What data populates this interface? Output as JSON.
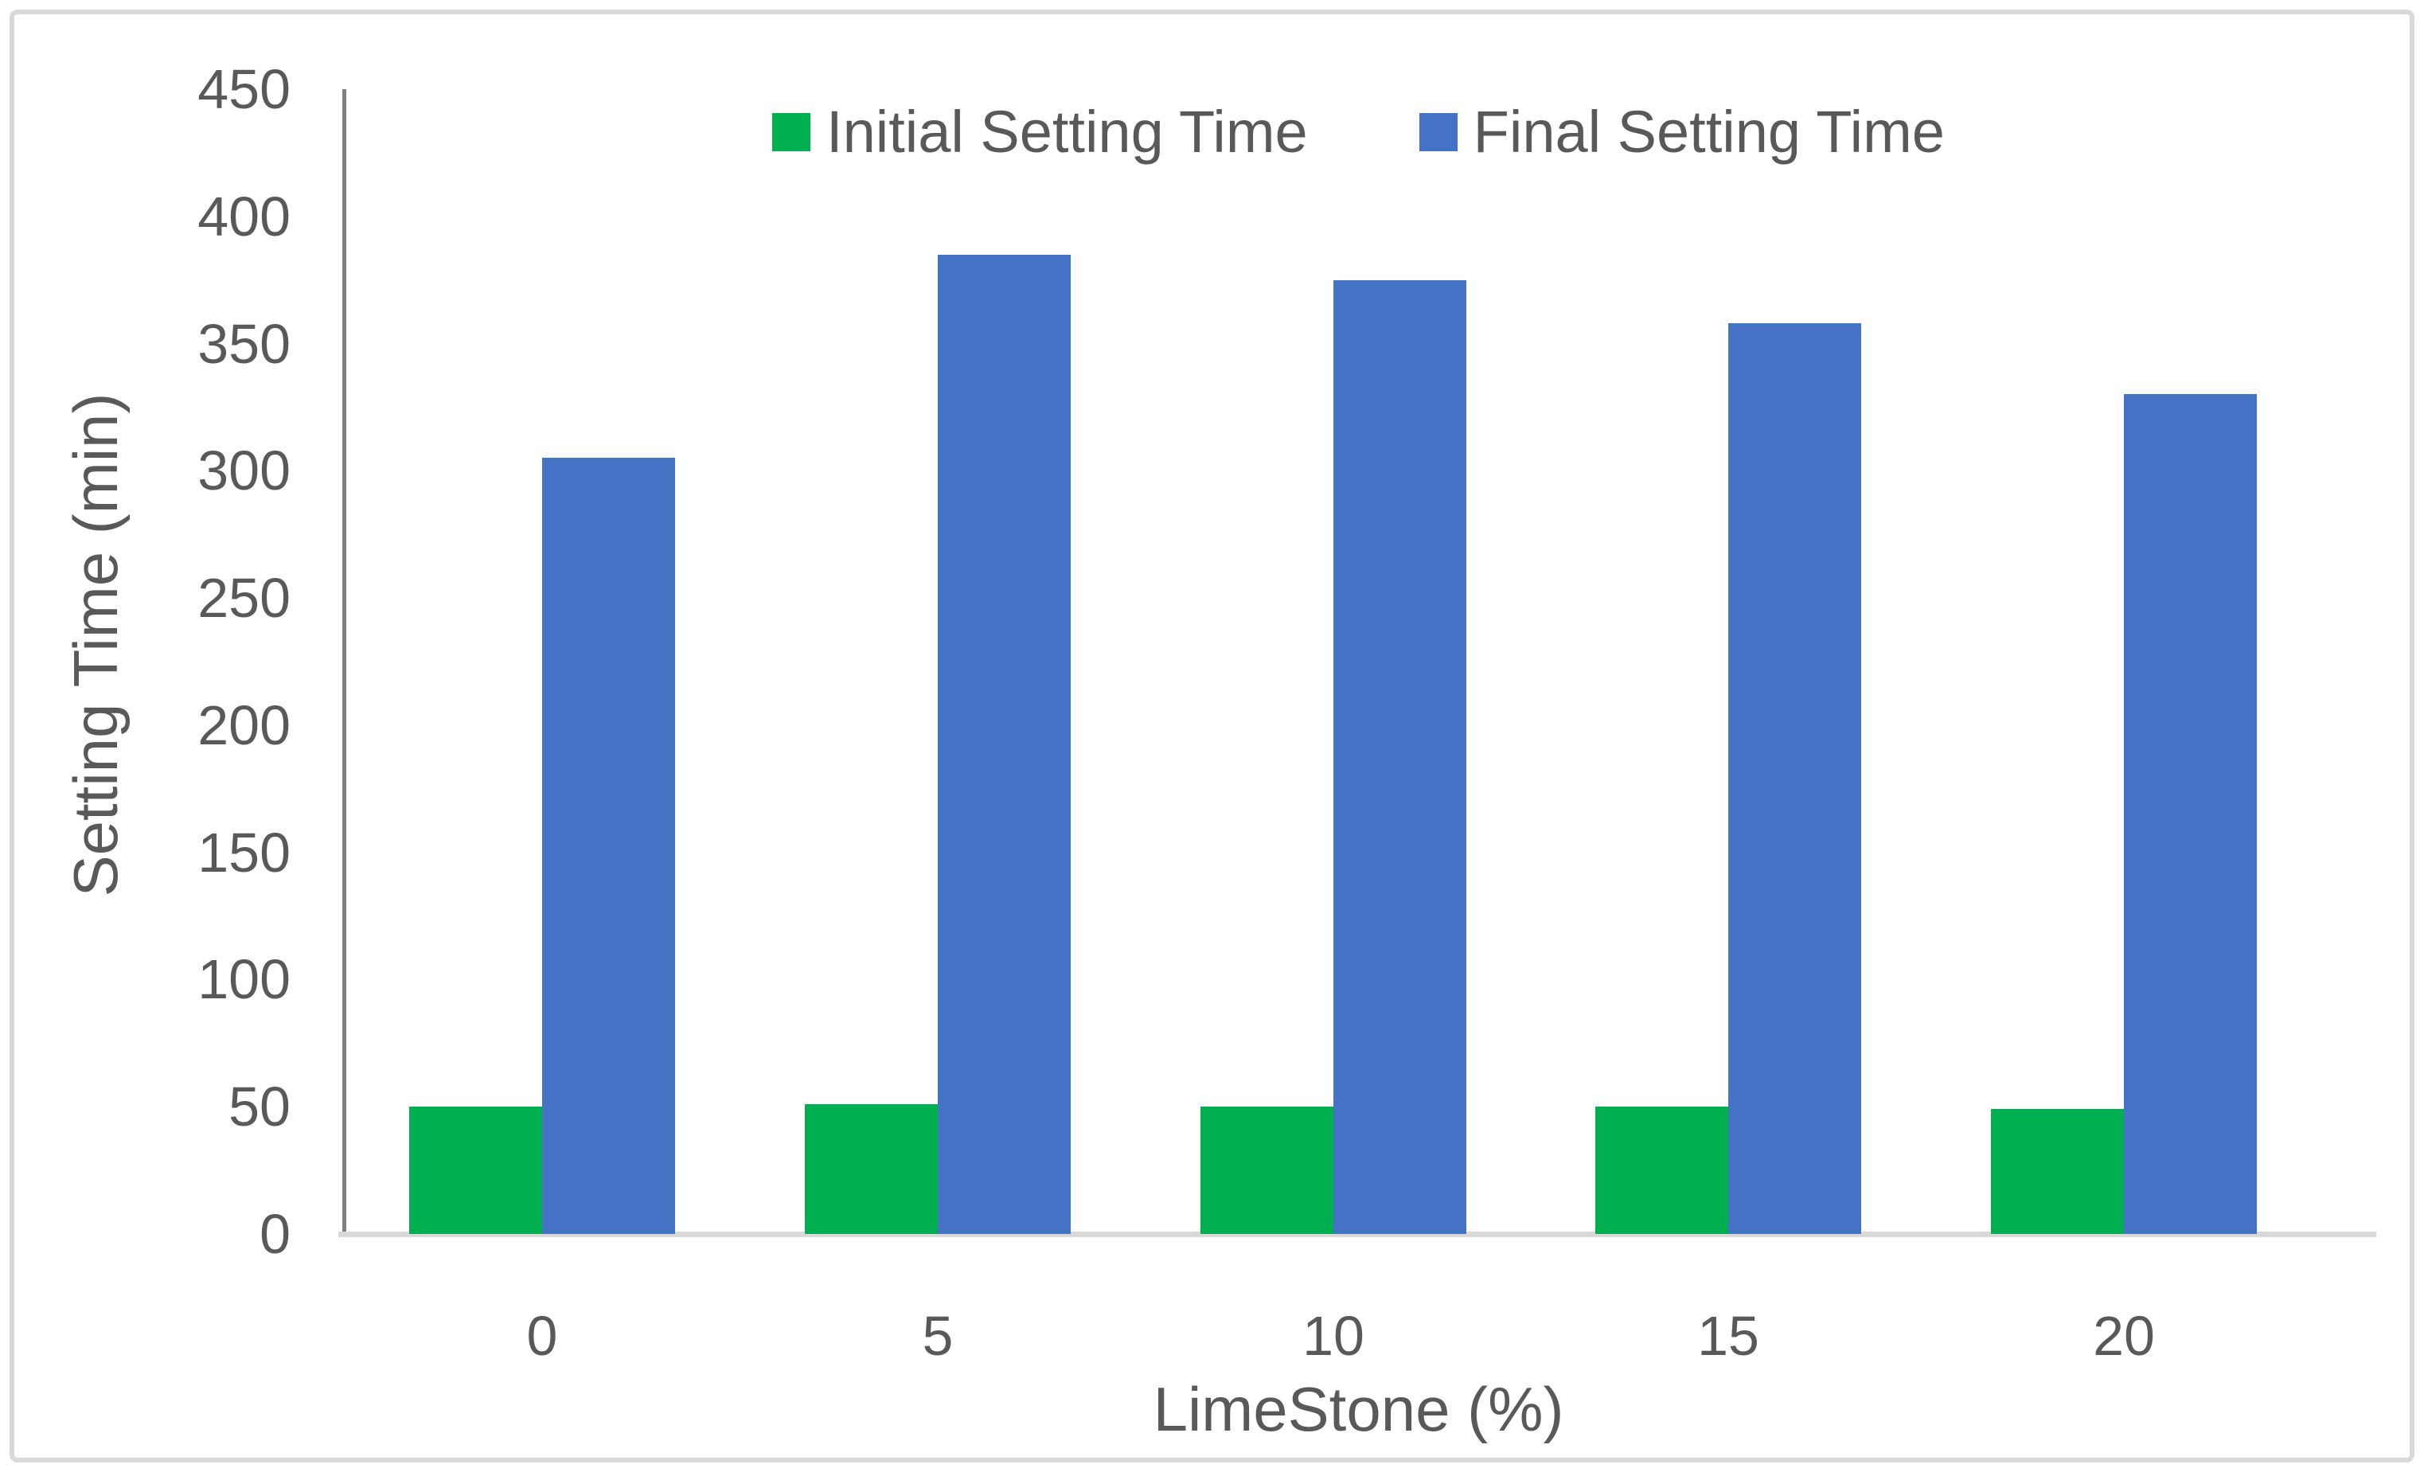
{
  "chart_data": {
    "type": "bar",
    "categories": [
      "0",
      "5",
      "10",
      "15",
      "20"
    ],
    "series": [
      {
        "name": "Initial Setting Time",
        "color": "#00B050",
        "values": [
          50,
          51,
          50,
          50,
          49
        ]
      },
      {
        "name": "Final Setting Time",
        "color": "#4472C4",
        "values": [
          305,
          385,
          375,
          358,
          330
        ]
      }
    ],
    "title": "",
    "xlabel": "LimeStone (%)",
    "ylabel": "Setting Time (min)",
    "ylim": [
      0,
      450
    ],
    "yticks": [
      0,
      50,
      100,
      150,
      200,
      250,
      300,
      350,
      400,
      450
    ],
    "grid": false,
    "legend_position": "top-center"
  },
  "colors": {
    "background": "#FFFFFF",
    "border": "#D9D9D9",
    "axis_line": "#808080",
    "baseline": "#D9D9D9",
    "text": "#595959"
  }
}
